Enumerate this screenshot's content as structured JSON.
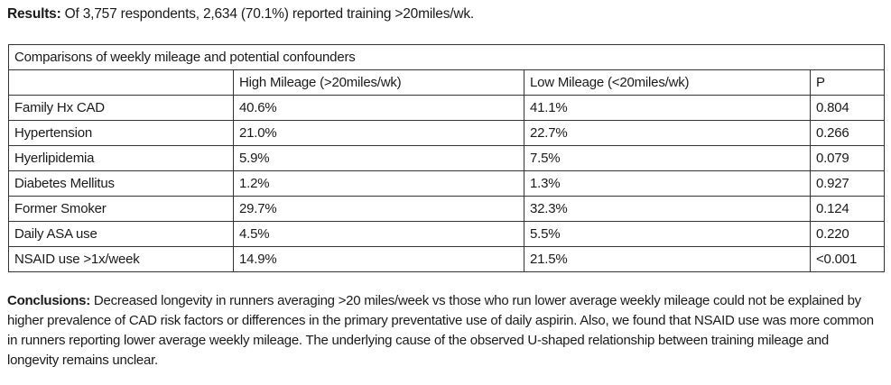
{
  "results": {
    "label": "Results:",
    "text": " Of 3,757 respondents, 2,634 (70.1%) reported training >20miles/wk."
  },
  "table": {
    "caption": "Comparisons of weekly mileage and potential confounders",
    "headers": [
      "",
      "High Mileage (>20miles/wk)",
      "Low Mileage (<20miles/wk)",
      "P"
    ],
    "rows": [
      [
        "Family Hx CAD",
        "40.6%",
        "41.1%",
        "0.804"
      ],
      [
        "Hypertension",
        "21.0%",
        "22.7%",
        "0.266"
      ],
      [
        "Hyerlipidemia",
        "5.9%",
        "7.5%",
        "0.079"
      ],
      [
        "Diabetes Mellitus",
        "1.2%",
        "1.3%",
        "0.927"
      ],
      [
        "Former Smoker",
        "29.7%",
        "32.3%",
        "0.124"
      ],
      [
        "Daily ASA use",
        "4.5%",
        "5.5%",
        "0.220"
      ],
      [
        "NSAID use >1x/week",
        "14.9%",
        "21.5%",
        "<0.001"
      ]
    ]
  },
  "conclusions": {
    "label": "Conclusions:",
    "text": " Decreased longevity in runners averaging >20 miles/week vs those who run lower average weekly mileage could not be explained by higher prevalence of CAD risk factors or differences in the primary preventative use of daily aspirin. Also, we found that NSAID use was more common in runners reporting lower average weekly mileage. The underlying cause of the observed U-shaped relationship between training mileage and longevity remains unclear."
  }
}
